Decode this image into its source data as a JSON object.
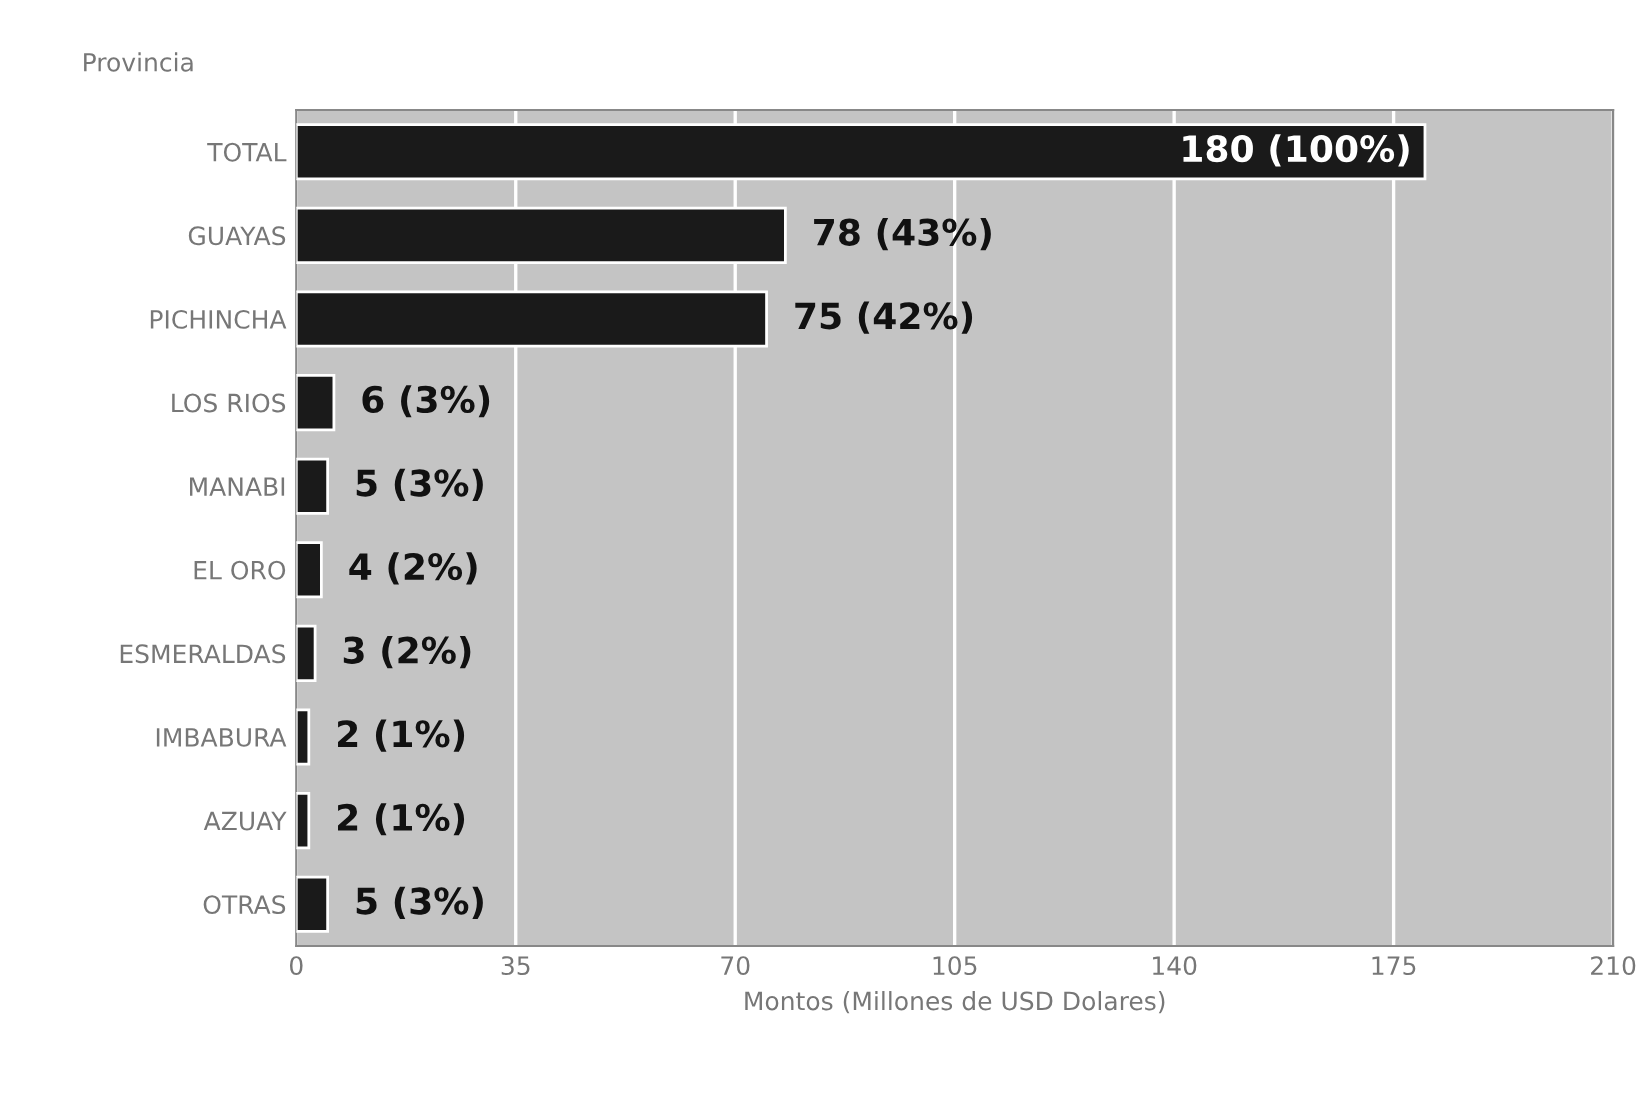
{
  "chart_data": {
    "type": "bar",
    "orientation": "horizontal",
    "ylabel": "Provincia",
    "xlabel": "Montos (Millones de USD Dolares)",
    "categories": [
      "TOTAL",
      "GUAYAS",
      "PICHINCHA",
      "LOS RIOS",
      "MANABI",
      "EL ORO",
      "ESMERALDAS",
      "IMBABURA",
      "AZUAY",
      "OTRAS"
    ],
    "values": [
      180,
      78,
      75,
      6,
      5,
      4,
      3,
      2,
      2,
      5
    ],
    "value_labels": [
      "180 (100%)",
      "78 (43%)",
      "75 (42%)",
      "6 (3%)",
      "5 (3%)",
      "4 (2%)",
      "3 (2%)",
      "2 (1%)",
      "2 (1%)",
      "5 (3%)"
    ],
    "color": "#1a1a1a",
    "xlim": [
      0,
      210
    ],
    "xticks": [
      0,
      35,
      70,
      105,
      140,
      175,
      210
    ],
    "grid": "x"
  }
}
